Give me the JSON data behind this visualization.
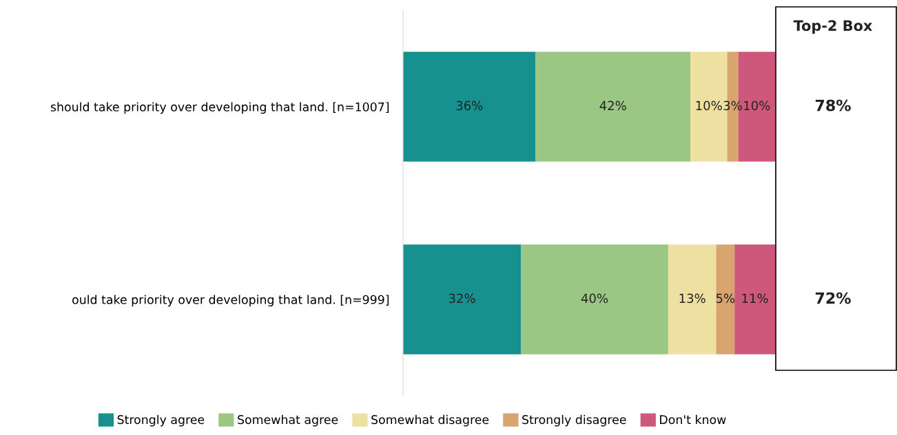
{
  "chart_data": {
    "type": "bar",
    "orientation": "horizontal",
    "stacked": true,
    "grid": false,
    "legend": "bottom",
    "categories": [
      "should take priority over developing that land. [n=1007]",
      "ould take priority over developing that land. [n=999]"
    ],
    "series": [
      {
        "name": "Strongly agree",
        "color": "#17918f",
        "values": [
          36,
          32
        ],
        "value_labels": [
          "36%",
          "32%"
        ]
      },
      {
        "name": "Somewhat agree",
        "color": "#9bc785",
        "values": [
          42,
          40
        ],
        "value_labels": [
          "42%",
          "40%"
        ]
      },
      {
        "name": "Somewhat disagree",
        "color": "#eee0a0",
        "values": [
          10,
          13
        ],
        "value_labels": [
          "10%",
          "13%"
        ]
      },
      {
        "name": "Strongly disagree",
        "color": "#d9a46e",
        "values": [
          3,
          5
        ],
        "value_labels": [
          "3%",
          "5%"
        ]
      },
      {
        "name": "Don't know",
        "color": "#cd587b",
        "values": [
          10,
          11
        ],
        "value_labels": [
          "10%",
          "11%"
        ]
      }
    ],
    "annotations": [
      "Top-2 Box",
      "78%",
      "72%"
    ]
  }
}
